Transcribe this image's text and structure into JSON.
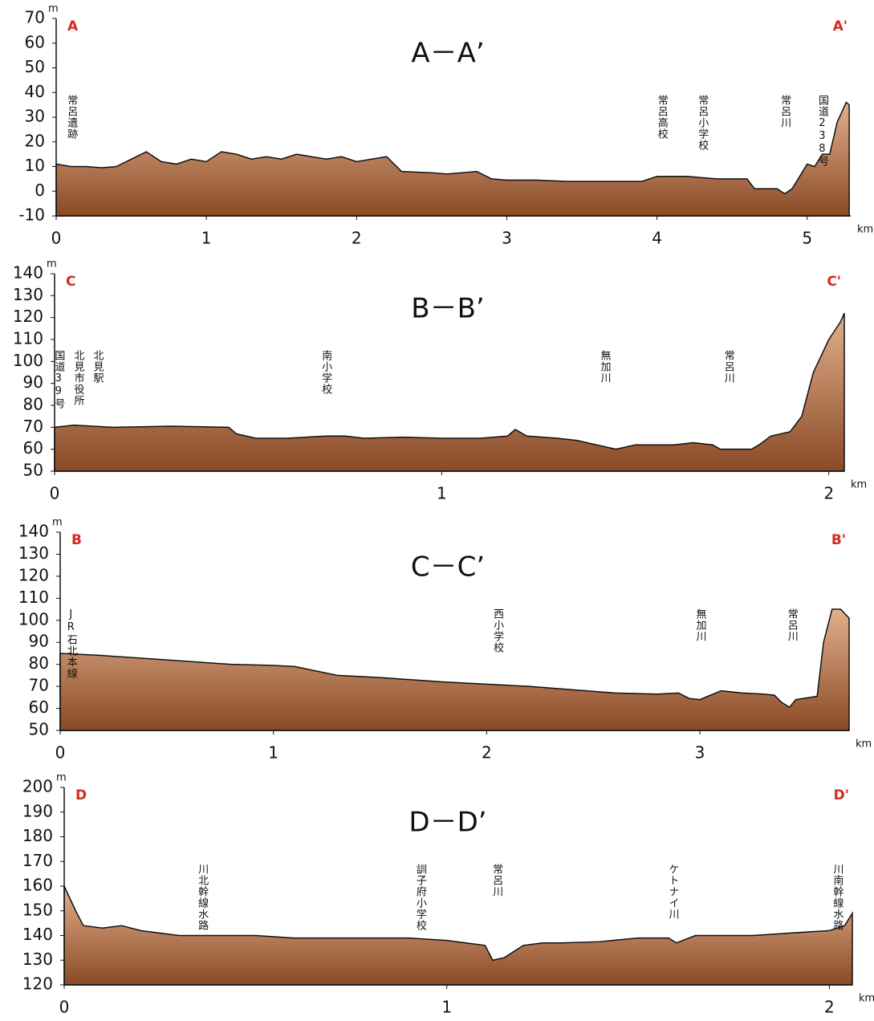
{
  "chart_data": [
    {
      "type": "area",
      "title": "A－A’",
      "corner_labels": [
        "A",
        "A'"
      ],
      "y_unit": "m",
      "x_unit": "km",
      "color": "#8a4a26",
      "x": [
        0,
        0.1,
        0.2,
        0.3,
        0.4,
        0.5,
        0.6,
        0.7,
        0.8,
        0.9,
        1.0,
        1.1,
        1.2,
        1.3,
        1.4,
        1.5,
        1.6,
        1.7,
        1.8,
        1.9,
        2.0,
        2.1,
        2.2,
        2.3,
        2.5,
        2.6,
        2.7,
        2.8,
        2.9,
        3.0,
        3.2,
        3.4,
        3.6,
        3.8,
        3.9,
        4.0,
        4.2,
        4.4,
        4.6,
        4.65,
        4.8,
        4.85,
        4.9,
        5.0,
        5.05,
        5.1,
        5.15,
        5.2,
        5.26,
        5.28
      ],
      "values": [
        11,
        10,
        10,
        9.5,
        10,
        13,
        16,
        12,
        11,
        13,
        12,
        16,
        15,
        13,
        14,
        13,
        15,
        14,
        13,
        14,
        12,
        13,
        14,
        8,
        7.5,
        7,
        7.5,
        8,
        5,
        4.5,
        4.5,
        4,
        4,
        4,
        4,
        6,
        6,
        5,
        5,
        1,
        1,
        -1,
        1,
        11,
        10,
        15,
        15,
        28,
        36,
        35
      ],
      "xlim": [
        0,
        5.29
      ],
      "xticks": [
        0,
        1,
        2,
        3,
        4,
        5
      ],
      "ylim": [
        -10,
        70
      ],
      "yticks": [
        -10,
        0,
        10,
        20,
        30,
        40,
        50,
        60,
        70
      ],
      "annotations": [
        {
          "text": "常呂遺跡",
          "x": 0.1
        },
        {
          "text": "常呂高校",
          "x": 4.03
        },
        {
          "text": "常呂小学校",
          "x": 4.3
        },
        {
          "text": "常呂川",
          "x": 4.85
        },
        {
          "text": "国道238号",
          "x": 5.1
        }
      ]
    },
    {
      "type": "area",
      "title": "B－B’",
      "corner_labels": [
        "C",
        "C'"
      ],
      "y_unit": "m",
      "x_unit": "km",
      "color": "#8a4a26",
      "x": [
        0,
        0.05,
        0.1,
        0.15,
        0.3,
        0.45,
        0.47,
        0.52,
        0.6,
        0.7,
        0.75,
        0.8,
        0.9,
        1.0,
        1.1,
        1.17,
        1.19,
        1.22,
        1.3,
        1.35,
        1.4,
        1.45,
        1.5,
        1.6,
        1.65,
        1.7,
        1.72,
        1.8,
        1.82,
        1.85,
        1.9,
        1.93,
        1.96,
        2.0,
        2.03,
        2.04
      ],
      "values": [
        70,
        71,
        70.5,
        70,
        70.5,
        70,
        67,
        65,
        65,
        66,
        66,
        65,
        65.5,
        65,
        65,
        66,
        69,
        66,
        65,
        64,
        62,
        60,
        62,
        62,
        63,
        62,
        60,
        60,
        62,
        66,
        68,
        75,
        95,
        110,
        118,
        122
      ],
      "xlim": [
        0,
        2.04
      ],
      "xticks": [
        0,
        1,
        2
      ],
      "ylim": [
        50,
        140
      ],
      "yticks": [
        50,
        60,
        70,
        80,
        90,
        100,
        110,
        120,
        130,
        140
      ],
      "annotations": [
        {
          "text": "国道39号",
          "x": 0.01
        },
        {
          "text": "北見市役所",
          "x": 0.06
        },
        {
          "text": "北見駅",
          "x": 0.11
        },
        {
          "text": "南小学校",
          "x": 0.7
        },
        {
          "text": "無加川",
          "x": 1.42
        },
        {
          "text": "常呂川",
          "x": 1.74
        }
      ]
    },
    {
      "type": "area",
      "title": "C－C’",
      "corner_labels": [
        "B",
        "B'"
      ],
      "y_unit": "m",
      "x_unit": "km",
      "color": "#8a4a26",
      "x": [
        0,
        0.2,
        0.5,
        0.8,
        1.0,
        1.1,
        1.15,
        1.3,
        1.5,
        1.8,
        2.0,
        2.2,
        2.4,
        2.6,
        2.8,
        2.9,
        2.95,
        3.0,
        3.05,
        3.1,
        3.2,
        3.3,
        3.35,
        3.38,
        3.42,
        3.45,
        3.55,
        3.58,
        3.62,
        3.66,
        3.7
      ],
      "values": [
        85,
        84,
        82,
        80,
        79.5,
        79,
        78,
        75,
        74,
        72,
        71,
        70,
        68.5,
        67,
        66.5,
        67,
        64.5,
        64,
        66,
        68,
        67,
        66.5,
        66,
        63,
        60.5,
        64,
        65.5,
        90,
        105,
        105,
        101
      ],
      "xlim": [
        0,
        3.7
      ],
      "xticks": [
        0,
        1,
        2,
        3
      ],
      "ylim": [
        50,
        140
      ],
      "yticks": [
        50,
        60,
        70,
        80,
        90,
        100,
        110,
        120,
        130,
        140
      ],
      "annotations": [
        {
          "text": "JR石北本線",
          "x": 0.05
        },
        {
          "text": "西小学校",
          "x": 2.05
        },
        {
          "text": "無加川",
          "x": 3.0
        },
        {
          "text": "常呂川",
          "x": 3.43
        }
      ]
    },
    {
      "type": "area",
      "title": "D－D’",
      "corner_labels": [
        "D",
        "D'"
      ],
      "y_unit": "m",
      "x_unit": "km",
      "color": "#8a4a26",
      "x": [
        0,
        0.03,
        0.05,
        0.1,
        0.15,
        0.2,
        0.3,
        0.5,
        0.6,
        0.8,
        0.9,
        1.0,
        1.05,
        1.1,
        1.12,
        1.15,
        1.2,
        1.25,
        1.3,
        1.4,
        1.5,
        1.58,
        1.6,
        1.65,
        1.8,
        1.9,
        2.0,
        2.04,
        2.06
      ],
      "values": [
        160,
        150,
        144,
        143,
        144,
        142,
        140,
        140,
        139,
        139,
        139,
        138,
        137,
        136,
        130,
        131,
        136,
        137,
        137,
        137.5,
        139,
        139,
        137,
        140,
        140,
        141,
        142,
        144,
        149
      ],
      "xlim": [
        0,
        2.06
      ],
      "xticks": [
        0,
        1,
        2
      ],
      "ylim": [
        120,
        200
      ],
      "yticks": [
        120,
        130,
        140,
        150,
        160,
        170,
        180,
        190,
        200
      ],
      "annotations": [
        {
          "text": "川北幹線水路",
          "x": 0.36
        },
        {
          "text": "訓子府小学校",
          "x": 0.93
        },
        {
          "text": "常呂川",
          "x": 1.13
        },
        {
          "text": "ケトナイ川",
          "x": 1.59
        },
        {
          "text": "川南幹線水路",
          "x": 2.02
        }
      ]
    }
  ]
}
